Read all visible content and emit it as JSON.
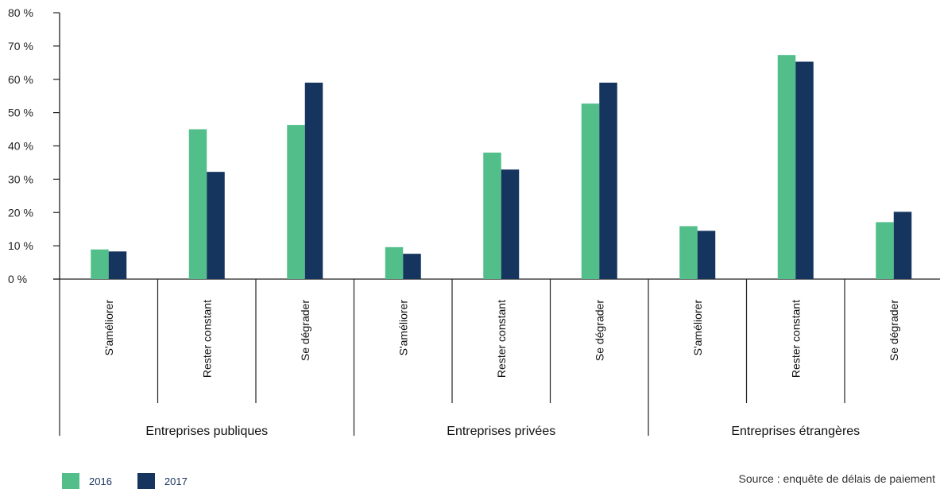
{
  "chart_data": {
    "type": "bar",
    "groups": [
      "Entreprises publiques",
      "Entreprises privées",
      "Entreprises étrangères"
    ],
    "categories": [
      "S'améliorer",
      "Rester constant",
      "Se dégrader"
    ],
    "series": [
      {
        "name": "2016",
        "color": "#52bf8a",
        "values": [
          [
            8.9,
            45.0,
            46.3
          ],
          [
            9.6,
            38.0,
            52.7
          ],
          [
            15.9,
            67.3,
            17.1
          ]
        ]
      },
      {
        "name": "2017",
        "color": "#15345e",
        "values": [
          [
            8.3,
            32.2,
            59.0
          ],
          [
            7.6,
            32.9,
            59.0
          ],
          [
            14.5,
            65.3,
            20.2
          ]
        ]
      }
    ],
    "ylim": [
      0,
      80
    ],
    "yticks": [
      "0 %",
      "10 %",
      "20 %",
      "30 %",
      "40 %",
      "50 %",
      "60 %",
      "70 %",
      "80 %"
    ],
    "grid": false,
    "legend_position": "bottom-left"
  },
  "legend": {
    "label_2016": "2016",
    "label_2017": "2017"
  },
  "source": "Source : enquête de délais de paiement"
}
